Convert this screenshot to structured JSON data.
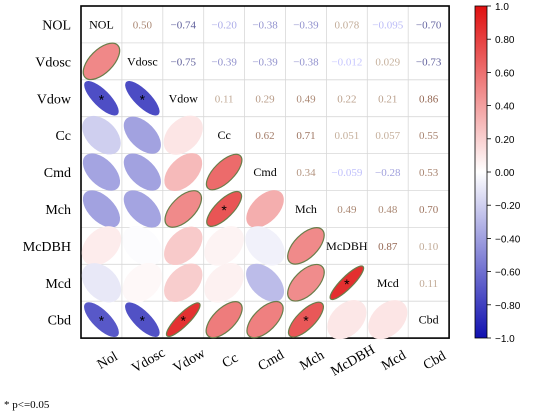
{
  "chart_data": {
    "type": "heatmap",
    "subtype": "correlation-matrix-mixed",
    "variables": [
      "NOL",
      "Vdosc",
      "Vdow",
      "Cc",
      "Cmd",
      "Mch",
      "McDBH",
      "Mcd",
      "Cbd"
    ],
    "matrix": [
      [
        1.0,
        0.5,
        -0.74,
        -0.2,
        -0.38,
        -0.39,
        0.078,
        -0.095,
        -0.7
      ],
      [
        0.5,
        1.0,
        -0.75,
        -0.39,
        -0.39,
        -0.38,
        -0.012,
        0.029,
        -0.73
      ],
      [
        -0.74,
        -0.75,
        1.0,
        0.11,
        0.29,
        0.49,
        0.22,
        0.21,
        0.86
      ],
      [
        -0.2,
        -0.39,
        0.11,
        1.0,
        0.62,
        0.71,
        0.051,
        0.057,
        0.55
      ],
      [
        -0.38,
        -0.39,
        0.29,
        0.62,
        1.0,
        0.34,
        -0.059,
        -0.28,
        0.53
      ],
      [
        -0.39,
        -0.38,
        0.49,
        0.71,
        0.34,
        1.0,
        0.49,
        0.48,
        0.7
      ],
      [
        0.078,
        -0.012,
        0.22,
        0.051,
        -0.059,
        0.49,
        1.0,
        0.87,
        0.1
      ],
      [
        -0.095,
        0.029,
        0.21,
        0.057,
        -0.28,
        0.48,
        0.87,
        1.0,
        0.11
      ],
      [
        -0.7,
        -0.73,
        0.86,
        0.55,
        0.53,
        0.7,
        0.1,
        0.11,
        1.0
      ]
    ],
    "upper_labels": [
      [
        "NOL",
        "0.50",
        "−0.74",
        "−0.20",
        "−0.38",
        "−0.39",
        "0.078",
        "−0.095",
        "−0.70"
      ],
      [
        "",
        "Vdosc",
        "−0.75",
        "−0.39",
        "−0.39",
        "−0.38",
        "−0.012",
        "0.029",
        "−0.73"
      ],
      [
        "",
        "",
        "Vdow",
        "0.11",
        "0.29",
        "0.49",
        "0.22",
        "0.21",
        "0.86"
      ],
      [
        "",
        "",
        "",
        "Cc",
        "0.62",
        "0.71",
        "0.051",
        "0.057",
        "0.55"
      ],
      [
        "",
        "",
        "",
        "",
        "Cmd",
        "0.34",
        "−0.059",
        "−0.28",
        "0.53"
      ],
      [
        "",
        "",
        "",
        "",
        "",
        "Mch",
        "0.49",
        "0.48",
        "0.70"
      ],
      [
        "",
        "",
        "",
        "",
        "",
        "",
        "McDBH",
        "0.87",
        "0.10"
      ],
      [
        "",
        "",
        "",
        "",
        "",
        "",
        "",
        "Mcd",
        "0.11"
      ],
      [
        "",
        "",
        "",
        "",
        "",
        "",
        "",
        "",
        "Cbd"
      ]
    ],
    "row_labels": [
      "NOL",
      "Vdosc",
      "Vdow",
      "Cc",
      "Cmd",
      "Mch",
      "McDBH",
      "Mcd",
      "Cbd"
    ],
    "col_labels": [
      "Nol",
      "Vdosc",
      "Vdow",
      "Cc",
      "Cmd",
      "Mch",
      "McDBH",
      "Mcd",
      "Cbd"
    ],
    "significant_cells": [
      [
        2,
        0
      ],
      [
        2,
        1
      ],
      [
        5,
        3
      ],
      [
        7,
        6
      ],
      [
        8,
        0
      ],
      [
        8,
        1
      ],
      [
        8,
        2
      ],
      [
        8,
        5
      ]
    ],
    "significance_marker": "*",
    "lower_triangle_style": "ellipse",
    "upper_triangle_style": "number",
    "colorbar": {
      "range": [
        -1.0,
        1.0
      ],
      "ticks": [
        "1.0",
        "0.80",
        "0.60",
        "0.40",
        "0.20",
        "0.00",
        "−0.20",
        "−0.40",
        "−0.60",
        "−0.80",
        "−1.0"
      ],
      "colors": {
        "negative": "#1010b0",
        "zero": "#ffffff",
        "positive": "#e01010"
      },
      "placement": "right"
    },
    "grid": true,
    "footnote": "* p<=0.05"
  }
}
